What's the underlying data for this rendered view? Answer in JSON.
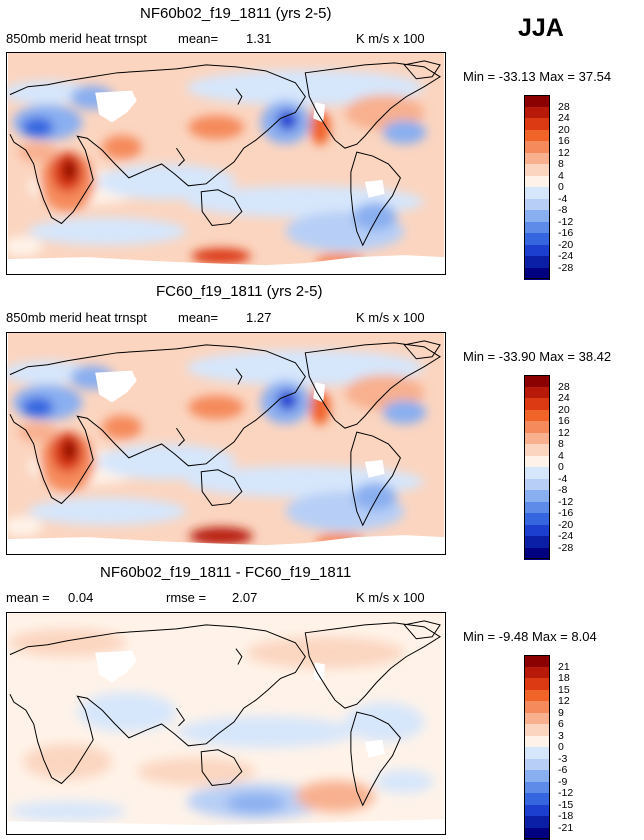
{
  "season": "JJA",
  "panels": [
    {
      "title": "NF60b02_f19_1811 (yrs 2-5)",
      "var_label": "850mb merid heat trnspt",
      "stat1_label": "mean=",
      "stat1_value": "1.31",
      "stat2_label": "",
      "stat2_value": "",
      "units": "K m/s x 100",
      "minmax": "Min = -33.13 Max = 37.54"
    },
    {
      "title": "FC60_f19_1811 (yrs 2-5)",
      "var_label": "850mb merid heat trnspt",
      "stat1_label": "mean=",
      "stat1_value": "1.27",
      "stat2_label": "",
      "stat2_value": "",
      "units": "K m/s x 100",
      "minmax": "Min = -33.90 Max = 38.42"
    },
    {
      "title": "NF60b02_f19_1811 - FC60_f19_1811",
      "var_label": "",
      "stat1_label": "mean =",
      "stat1_value": "0.04",
      "stat2_label": "rmse =",
      "stat2_value": "2.07",
      "units": "K m/s x 100",
      "minmax": "Min = -9.48 Max = 8.04"
    }
  ],
  "colorbars": [
    {
      "levels": [
        "28",
        "24",
        "20",
        "16",
        "12",
        "8",
        "4",
        "0",
        "-4",
        "-8",
        "-12",
        "-16",
        "-20",
        "-24",
        "-28"
      ]
    },
    {
      "levels": [
        "28",
        "24",
        "20",
        "16",
        "12",
        "8",
        "4",
        "0",
        "-4",
        "-8",
        "-12",
        "-16",
        "-20",
        "-24",
        "-28"
      ]
    },
    {
      "levels": [
        "21",
        "18",
        "15",
        "12",
        "9",
        "6",
        "3",
        "0",
        "-3",
        "-6",
        "-9",
        "-12",
        "-15",
        "-18",
        "-21"
      ]
    }
  ],
  "colors": [
    "#8b0000",
    "#b81a0a",
    "#dc3a12",
    "#f0642a",
    "#f58a5c",
    "#f8b08f",
    "#fbd5c0",
    "#fff3e9",
    "#d6e6fb",
    "#b7cff6",
    "#8aaff0",
    "#5e8ae8",
    "#3566e0",
    "#1d3fd0",
    "#0a1ea6",
    "#000080"
  ],
  "chart_data": [
    {
      "type": "heatmap",
      "title": "NF60b02_f19_1811 (yrs 2-5)",
      "subtitle": "850mb merid heat trnspt",
      "mean": 1.31,
      "min": -33.13,
      "max": 37.54,
      "units": "K m/s x 100",
      "contour_levels": [
        -28,
        -24,
        -20,
        -16,
        -12,
        -8,
        -4,
        0,
        4,
        8,
        12,
        16,
        20,
        24,
        28
      ],
      "features": [
        {
          "region": "East Africa / Arabian Sea",
          "sign": "positive",
          "peak_approx": 28
        },
        {
          "region": "Middle East / Central Asia",
          "sign": "negative",
          "peak_approx": -24
        },
        {
          "region": "Western Pacific (east of Japan)",
          "sign": "positive",
          "peak_approx": 12
        },
        {
          "region": "Northeast Pacific (Gulf of Alaska)",
          "sign": "negative",
          "peak_approx": -24
        },
        {
          "region": "Antarctic coast (Pacific sector)",
          "sign": "positive",
          "peak_approx": 24
        },
        {
          "region": "South Atlantic off South America",
          "sign": "negative",
          "peak_approx": -16
        }
      ]
    },
    {
      "type": "heatmap",
      "title": "FC60_f19_1811 (yrs 2-5)",
      "subtitle": "850mb merid heat trnspt",
      "mean": 1.27,
      "min": -33.9,
      "max": 38.42,
      "units": "K m/s x 100",
      "contour_levels": [
        -28,
        -24,
        -20,
        -16,
        -12,
        -8,
        -4,
        0,
        4,
        8,
        12,
        16,
        20,
        24,
        28
      ],
      "features": [
        {
          "region": "East Africa / Arabian Sea",
          "sign": "positive",
          "peak_approx": 28
        },
        {
          "region": "Middle East / Central Asia",
          "sign": "negative",
          "peak_approx": -24
        },
        {
          "region": "Western Pacific (east of Japan)",
          "sign": "positive",
          "peak_approx": 12
        },
        {
          "region": "Northeast Pacific (Gulf of Alaska)",
          "sign": "negative",
          "peak_approx": -24
        },
        {
          "region": "Antarctic coast (Pacific sector)",
          "sign": "positive",
          "peak_approx": 28
        },
        {
          "region": "South Atlantic off South America",
          "sign": "negative",
          "peak_approx": -16
        }
      ]
    },
    {
      "type": "heatmap",
      "title": "NF60b02_f19_1811 - FC60_f19_1811",
      "mean": 0.04,
      "rmse": 2.07,
      "min": -9.48,
      "max": 8.04,
      "units": "K m/s x 100",
      "contour_levels": [
        -21,
        -18,
        -15,
        -12,
        -9,
        -6,
        -3,
        0,
        3,
        6,
        9,
        12,
        15,
        18,
        21
      ],
      "features": [
        {
          "region": "South Pacific / Southern Ocean",
          "sign": "negative",
          "peak_approx": -9
        },
        {
          "region": "North Pacific",
          "sign": "positive",
          "peak_approx": 3
        },
        {
          "region": "Indian Ocean",
          "sign": "positive",
          "peak_approx": 3
        }
      ]
    }
  ]
}
